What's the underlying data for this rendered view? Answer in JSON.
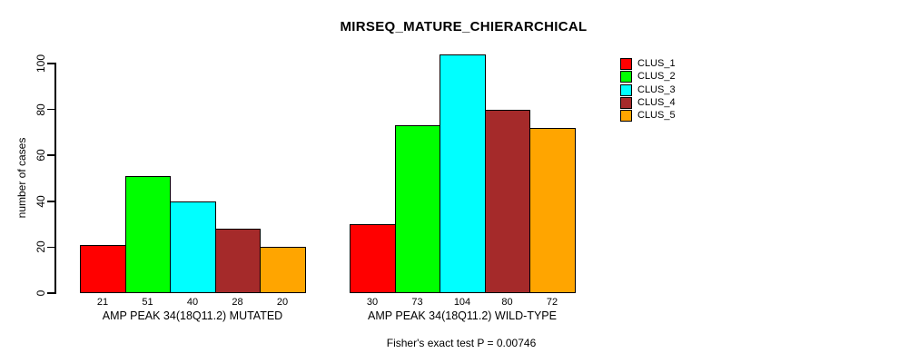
{
  "chart_data": {
    "type": "bar",
    "title": "MIRSEQ_MATURE_CHIERARCHICAL",
    "ylabel": "number of cases",
    "xlabel": "",
    "ylim": [
      0,
      100
    ],
    "yticks": [
      0,
      20,
      40,
      60,
      80,
      100
    ],
    "grid": false,
    "legend_position": "right",
    "bar_value_labels_shown": true,
    "categories": [
      "AMP PEAK 34(18Q11.2) MUTATED",
      "AMP PEAK 34(18Q11.2) WILD-TYPE"
    ],
    "series": [
      {
        "name": "CLUS_1",
        "color": "#ff0000",
        "values": [
          21,
          30
        ]
      },
      {
        "name": "CLUS_2",
        "color": "#00ff00",
        "values": [
          51,
          73
        ]
      },
      {
        "name": "CLUS_3",
        "color": "#00ffff",
        "values": [
          40,
          104
        ]
      },
      {
        "name": "CLUS_4",
        "color": "#a52a2a",
        "values": [
          28,
          80
        ]
      },
      {
        "name": "CLUS_5",
        "color": "#ffa500",
        "values": [
          20,
          72
        ]
      }
    ],
    "footnote": "Fisher's exact test P = 0.00746",
    "colors": {
      "background": "#ffffff",
      "axis": "#000000",
      "bar_border": "#000000"
    }
  }
}
